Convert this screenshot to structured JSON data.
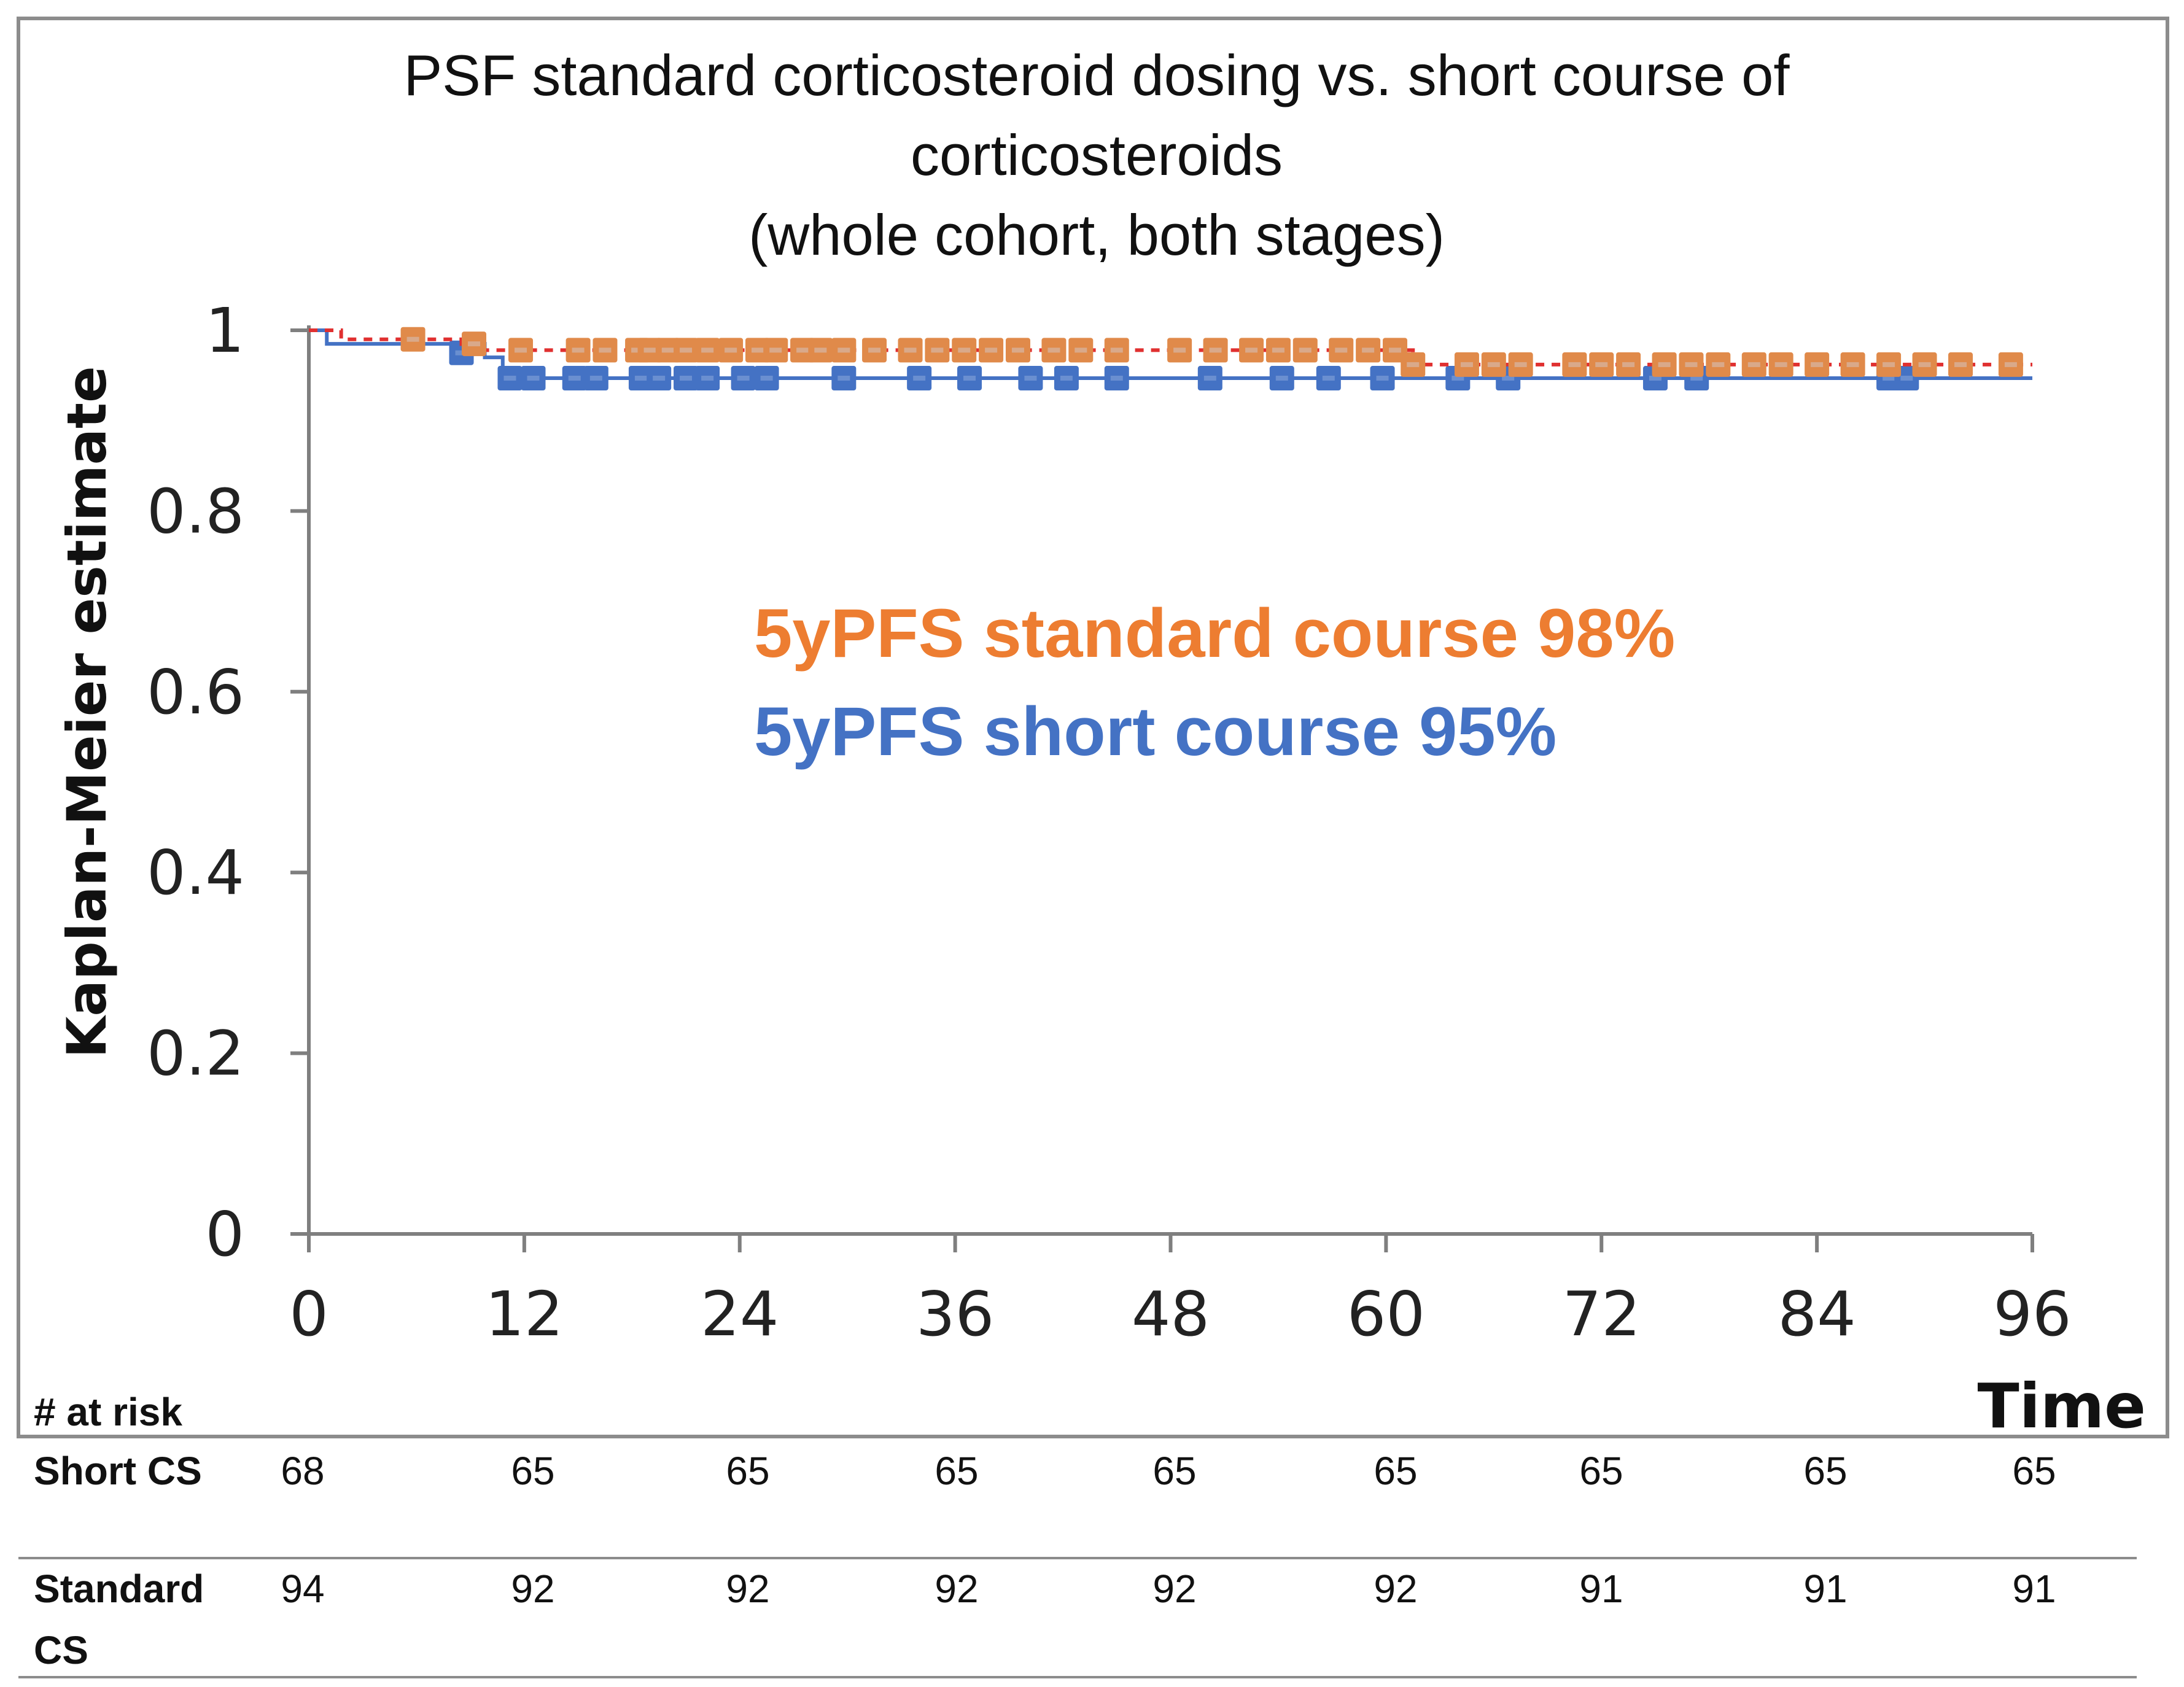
{
  "chart_data": {
    "type": "line",
    "title_lines": [
      "PSF standard corticosteroid dosing vs. short course of",
      "corticosteroids",
      "(whole cohort, both stages)"
    ],
    "ylabel": "Kaplan-Meier estimate",
    "xlabel": "Time",
    "x_ticks": [
      0,
      12,
      24,
      36,
      48,
      60,
      72,
      84,
      96
    ],
    "x_tick_labels": [
      "0",
      "12",
      "24",
      "36",
      "48",
      "60",
      "72",
      "84",
      "96"
    ],
    "y_ticks": [
      0,
      0.2,
      0.4,
      0.6,
      0.8,
      1
    ],
    "y_tick_labels": [
      "0",
      "0.2",
      "0.4",
      "0.6",
      "0.8",
      "1"
    ],
    "xlim": [
      0,
      96
    ],
    "ylim": [
      0,
      1
    ],
    "grid": false,
    "series": [
      {
        "name": "Standard CS",
        "color": "#e03030",
        "marker_color": "#e08a4a",
        "marker_inner_color": "#d9a98a",
        "line_style": "dotted",
        "steps": [
          [
            0,
            1.0
          ],
          [
            1.8,
            0.99
          ],
          [
            8.5,
            0.978
          ],
          [
            61.5,
            0.962
          ],
          [
            96,
            0.962
          ]
        ],
        "censored": [
          [
            5.8,
            0.99
          ],
          [
            9.2,
            0.985
          ],
          [
            11.8,
            0.978
          ],
          [
            15,
            0.978
          ],
          [
            16.5,
            0.978
          ],
          [
            18.3,
            0.978
          ],
          [
            19,
            0.978
          ],
          [
            20,
            0.978
          ],
          [
            21,
            0.978
          ],
          [
            22.2,
            0.978
          ],
          [
            23.5,
            0.978
          ],
          [
            25,
            0.978
          ],
          [
            26,
            0.978
          ],
          [
            27.5,
            0.978
          ],
          [
            28.5,
            0.978
          ],
          [
            29.8,
            0.978
          ],
          [
            31.5,
            0.978
          ],
          [
            33.5,
            0.978
          ],
          [
            35,
            0.978
          ],
          [
            36.5,
            0.978
          ],
          [
            38,
            0.978
          ],
          [
            39.5,
            0.978
          ],
          [
            41.5,
            0.978
          ],
          [
            43,
            0.978
          ],
          [
            45,
            0.978
          ],
          [
            48.5,
            0.978
          ],
          [
            50.5,
            0.978
          ],
          [
            52.5,
            0.978
          ],
          [
            54,
            0.978
          ],
          [
            55.5,
            0.978
          ],
          [
            57.5,
            0.978
          ],
          [
            59,
            0.978
          ],
          [
            60.5,
            0.978
          ],
          [
            61.5,
            0.962
          ],
          [
            64.5,
            0.962
          ],
          [
            66,
            0.962
          ],
          [
            67.5,
            0.962
          ],
          [
            70.5,
            0.962
          ],
          [
            72,
            0.962
          ],
          [
            73.5,
            0.962
          ],
          [
            75.5,
            0.962
          ],
          [
            77,
            0.962
          ],
          [
            78.5,
            0.962
          ],
          [
            80.5,
            0.962
          ],
          [
            82,
            0.962
          ],
          [
            84,
            0.962
          ],
          [
            86,
            0.962
          ],
          [
            88,
            0.962
          ],
          [
            90,
            0.962
          ],
          [
            92,
            0.962
          ],
          [
            94.8,
            0.962
          ]
        ]
      },
      {
        "name": "Short CS",
        "color": "#4472c4",
        "marker_color": "#4472c4",
        "marker_inner_color": "#6a8fd0",
        "line_style": "solid",
        "steps": [
          [
            0,
            1.0
          ],
          [
            1.0,
            0.985
          ],
          [
            9.8,
            0.97
          ],
          [
            10.8,
            0.947
          ],
          [
            96,
            0.947
          ]
        ],
        "censored": [
          [
            8.5,
            0.975
          ],
          [
            11.2,
            0.947
          ],
          [
            12.5,
            0.947
          ],
          [
            14.8,
            0.947
          ],
          [
            16,
            0.947
          ],
          [
            18.5,
            0.947
          ],
          [
            19.5,
            0.947
          ],
          [
            21,
            0.947
          ],
          [
            22.2,
            0.947
          ],
          [
            24.2,
            0.947
          ],
          [
            25.5,
            0.947
          ],
          [
            29.8,
            0.947
          ],
          [
            34,
            0.947
          ],
          [
            36.8,
            0.947
          ],
          [
            40.2,
            0.947
          ],
          [
            42.2,
            0.947
          ],
          [
            45,
            0.947
          ],
          [
            50.2,
            0.947
          ],
          [
            54.2,
            0.947
          ],
          [
            56.8,
            0.947
          ],
          [
            59.8,
            0.947
          ],
          [
            64,
            0.947
          ],
          [
            66.8,
            0.947
          ],
          [
            75,
            0.947
          ],
          [
            77.3,
            0.947
          ],
          [
            88,
            0.947
          ],
          [
            89,
            0.947
          ]
        ]
      }
    ],
    "annotations": [
      {
        "text": "5yPFS standard course 98%",
        "color": "#ed7d31"
      },
      {
        "text": "5yPFS short course 95%",
        "color": "#4472c4"
      }
    ],
    "at_risk": {
      "header": "# at risk",
      "rows": [
        {
          "label_lines": [
            "Short CS"
          ],
          "values": [
            "68",
            "65",
            "65",
            "65",
            "65",
            "65",
            "65",
            "65",
            "65"
          ]
        },
        {
          "label_lines": [
            "Standard",
            "CS"
          ],
          "values": [
            "94",
            "92",
            "92",
            "92",
            "92",
            "92",
            "91",
            "91",
            "91"
          ]
        }
      ]
    }
  }
}
